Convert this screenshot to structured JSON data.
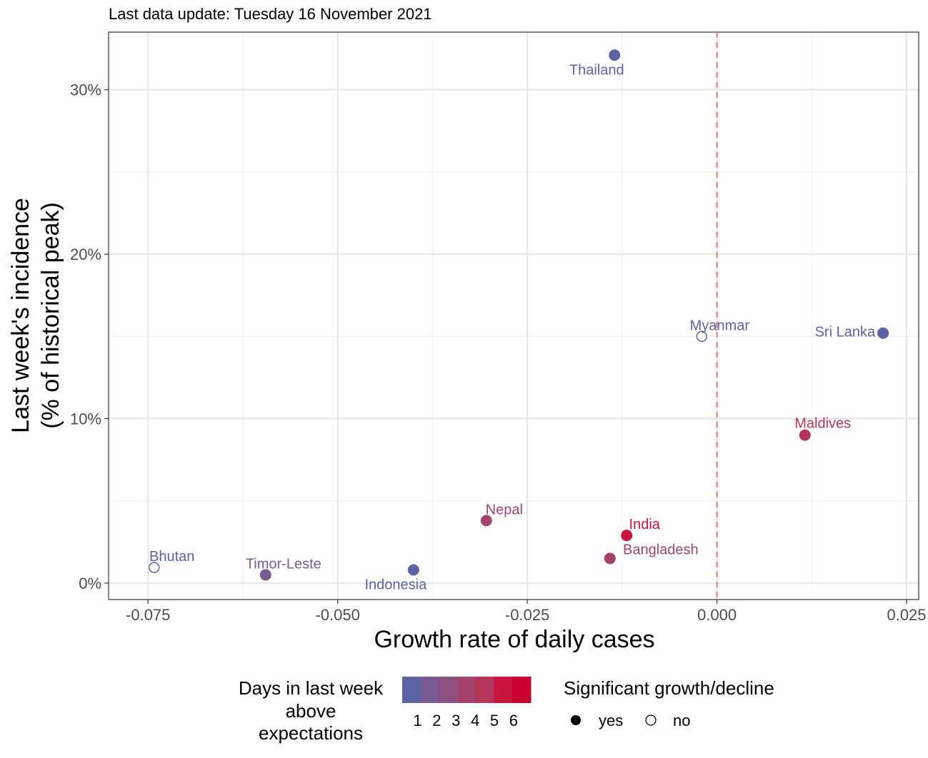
{
  "chart_data": {
    "type": "scatter",
    "subtitle": "Last data update: Tuesday 16 November 2021",
    "xlabel": "Growth rate of daily cases",
    "ylabel_line1": "Last week's incidence",
    "ylabel_line2": "(% of historical peak)",
    "xlim": [
      -0.0802,
      0.0266
    ],
    "ylim": [
      -1.0,
      33.5
    ],
    "x_ticks": [
      -0.075,
      -0.05,
      -0.025,
      0.0,
      0.025
    ],
    "x_tick_labels": [
      "-0.075",
      "-0.050",
      "-0.025",
      "0.000",
      "0.025"
    ],
    "y_ticks": [
      0,
      10,
      20,
      30
    ],
    "y_tick_labels": [
      "0%",
      "10%",
      "20%",
      "30%"
    ],
    "reference_line": {
      "x": 0.0,
      "color": "#e8837a",
      "style": "dashed"
    },
    "grid": true,
    "points": [
      {
        "label": "Thailand",
        "x": -0.0135,
        "y": 32.1,
        "days": 1,
        "significant": true
      },
      {
        "label": "Myanmar",
        "x": -0.002,
        "y": 15.0,
        "days": 1,
        "significant": false
      },
      {
        "label": "Sri Lanka",
        "x": 0.0219,
        "y": 15.2,
        "days": 1,
        "significant": true
      },
      {
        "label": "Maldives",
        "x": 0.0116,
        "y": 9.0,
        "days": 5,
        "significant": true
      },
      {
        "label": "Nepal",
        "x": -0.0304,
        "y": 3.8,
        "days": 4,
        "significant": true
      },
      {
        "label": "India",
        "x": -0.0119,
        "y": 2.9,
        "days": 6,
        "significant": true
      },
      {
        "label": "Bangladesh",
        "x": -0.0141,
        "y": 1.5,
        "days": 4,
        "significant": true
      },
      {
        "label": "Indonesia",
        "x": -0.04,
        "y": 0.8,
        "days": 1,
        "significant": true
      },
      {
        "label": "Timor-Leste",
        "x": -0.0595,
        "y": 0.5,
        "days": 2,
        "significant": true
      },
      {
        "label": "Bhutan",
        "x": -0.0742,
        "y": 0.95,
        "days": 1,
        "significant": false
      }
    ],
    "legend_color": {
      "title_lines": [
        "Days in last week",
        "above",
        "expectations"
      ],
      "labels": [
        "1",
        "2",
        "3",
        "4",
        "5",
        "6"
      ],
      "colors": [
        "#5b63a5",
        "#7a5a92",
        "#8f4f80",
        "#a3436e",
        "#b6345a",
        "#c8153f",
        "#c9002f"
      ]
    },
    "legend_shape": {
      "title": "Significant growth/decline",
      "items": [
        {
          "label": "yes",
          "filled": true
        },
        {
          "label": "no",
          "filled": false
        }
      ]
    },
    "day_colors": {
      "1": "#5b63a5",
      "2": "#7a5a92",
      "3": "#8f4f80",
      "4": "#a3436e",
      "5": "#b6345a",
      "6": "#c8153f"
    }
  }
}
